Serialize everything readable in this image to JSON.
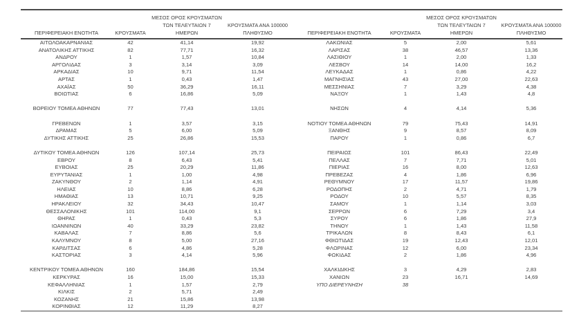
{
  "colors": {
    "text": "#3f3f3f",
    "border": "#4a4a4a",
    "background": "#ffffff"
  },
  "table": {
    "headers": {
      "region": "ΠΕΡΙΦΕΡΕΙΑΚΗ ΕΝΟΤΗΤΑ",
      "cases": "ΚΡΟΥΣΜΑΤΑ",
      "avg7": "ΜΕΣΟΣ ΟΡΟΣ ΚΡΟΥΣΜΑΤΩΝ\nΤΩΝ ΤΕΛΕΥΤΑΙΩΝ 7\nΗΜΕΡΩΝ",
      "per100k": "ΚΡΟΥΣΜΑΤΑ ΑΝΑ 100000\nΠΛΗΘΥΣΜΟ"
    },
    "left_rows": [
      {
        "name": "ΑΙΤΩΛΟΑΚΑΡΝΑΝΙΑΣ",
        "cases": "42",
        "avg7": "41,14",
        "per100k": "19,92"
      },
      {
        "name": "ΑΝΑΤΟΛΙΚΗΣ ΑΤΤΙΚΗΣ",
        "cases": "82",
        "avg7": "77,71",
        "per100k": "16,32"
      },
      {
        "name": "ΑΝΔΡΟΥ",
        "cases": "1",
        "avg7": "1,57",
        "per100k": "10,84"
      },
      {
        "name": "ΑΡΓΟΛΙΔΑΣ",
        "cases": "3",
        "avg7": "3,14",
        "per100k": "3,09"
      },
      {
        "name": "ΑΡΚΑΔΙΑΣ",
        "cases": "10",
        "avg7": "9,71",
        "per100k": "11,54"
      },
      {
        "name": "ΑΡΤΑΣ",
        "cases": "1",
        "avg7": "0,43",
        "per100k": "1,47"
      },
      {
        "name": "ΑΧΑΪΑΣ",
        "cases": "50",
        "avg7": "36,29",
        "per100k": "16,11"
      },
      {
        "name": "ΒΟΙΩΤΙΑΣ",
        "cases": "6",
        "avg7": "16,86",
        "per100k": "5,09"
      },
      {
        "name": "",
        "cases": "",
        "avg7": "",
        "per100k": ""
      },
      {
        "name": "ΒΟΡΕΙΟΥ ΤΟΜΕΑ ΑΘΗΝΩΝ",
        "cases": "77",
        "avg7": "77,43",
        "per100k": "13,01"
      },
      {
        "name": "",
        "cases": "",
        "avg7": "",
        "per100k": ""
      },
      {
        "name": "ΓΡΕΒΕΝΩΝ",
        "cases": "1",
        "avg7": "3,57",
        "per100k": "3,15"
      },
      {
        "name": "ΔΡΑΜΑΣ",
        "cases": "5",
        "avg7": "6,00",
        "per100k": "5,09"
      },
      {
        "name": "ΔΥΤΙΚΗΣ ΑΤΤΙΚΗΣ",
        "cases": "25",
        "avg7": "26,86",
        "per100k": "15,53"
      },
      {
        "name": "",
        "cases": "",
        "avg7": "",
        "per100k": ""
      },
      {
        "name": "ΔΥΤΙΚΟΥ ΤΟΜΕΑ ΑΘΗΝΩΝ",
        "cases": "126",
        "avg7": "107,14",
        "per100k": "25,73"
      },
      {
        "name": "ΕΒΡΟΥ",
        "cases": "8",
        "avg7": "6,43",
        "per100k": "5,41"
      },
      {
        "name": "ΕΥΒΟΙΑΣ",
        "cases": "25",
        "avg7": "20,29",
        "per100k": "11,86"
      },
      {
        "name": "ΕΥΡΥΤΑΝΙΑΣ",
        "cases": "1",
        "avg7": "1,00",
        "per100k": "4,98"
      },
      {
        "name": "ΖΑΚΥΝΘΟΥ",
        "cases": "2",
        "avg7": "1,14",
        "per100k": "4,91"
      },
      {
        "name": "ΗΛΕΙΑΣ",
        "cases": "10",
        "avg7": "8,86",
        "per100k": "6,28"
      },
      {
        "name": "ΗΜΑΘΙΑΣ",
        "cases": "13",
        "avg7": "10,71",
        "per100k": "9,25"
      },
      {
        "name": "ΗΡΑΚΛΕΙΟΥ",
        "cases": "32",
        "avg7": "34,43",
        "per100k": "10,47"
      },
      {
        "name": "ΘΕΣΣΑΛΟΝΙΚΗΣ",
        "cases": "101",
        "avg7": "114,00",
        "per100k": "9,1"
      },
      {
        "name": "ΘΗΡΑΣ",
        "cases": "1",
        "avg7": "0,43",
        "per100k": "5,3"
      },
      {
        "name": "ΙΩΑΝΝΙΝΩΝ",
        "cases": "40",
        "avg7": "33,29",
        "per100k": "23,82"
      },
      {
        "name": "ΚΑΒΑΛΑΣ",
        "cases": "7",
        "avg7": "8,86",
        "per100k": "5,6"
      },
      {
        "name": "ΚΑΛΥΜΝΟΥ",
        "cases": "8",
        "avg7": "5,00",
        "per100k": "27,16"
      },
      {
        "name": "ΚΑΡΔΙΤΣΑΣ",
        "cases": "6",
        "avg7": "4,86",
        "per100k": "5,28"
      },
      {
        "name": "ΚΑΣΤΟΡΙΑΣ",
        "cases": "3",
        "avg7": "4,14",
        "per100k": "5,96"
      },
      {
        "name": "",
        "cases": "",
        "avg7": "",
        "per100k": ""
      },
      {
        "name": "ΚΕΝΤΡΙΚΟΥ ΤΟΜΕΑ ΑΘΗΝΩΝ",
        "cases": "160",
        "avg7": "184,86",
        "per100k": "15,54"
      },
      {
        "name": "ΚΕΡΚΥΡΑΣ",
        "cases": "16",
        "avg7": "15,00",
        "per100k": "15,33"
      },
      {
        "name": "ΚΕΦΑΛΛΗΝΙΑΣ",
        "cases": "1",
        "avg7": "1,57",
        "per100k": "2,79"
      },
      {
        "name": "ΚΙΛΚΙΣ",
        "cases": "2",
        "avg7": "5,71",
        "per100k": "2,49"
      },
      {
        "name": "ΚΟΖΑΝΗΣ",
        "cases": "21",
        "avg7": "15,86",
        "per100k": "13,98"
      },
      {
        "name": "ΚΟΡΙΝΘΙΑΣ",
        "cases": "12",
        "avg7": "11,29",
        "per100k": "8,27"
      }
    ],
    "right_rows": [
      {
        "name": "ΛΑΚΩΝΙΑΣ",
        "cases": "5",
        "avg7": "2,00",
        "per100k": "5,61"
      },
      {
        "name": "ΛΑΡΙΣΑΣ",
        "cases": "38",
        "avg7": "46,57",
        "per100k": "13,36"
      },
      {
        "name": "ΛΑΣΙΘΙΟΥ",
        "cases": "1",
        "avg7": "2,00",
        "per100k": "1,33"
      },
      {
        "name": "ΛΕΣΒΟΥ",
        "cases": "14",
        "avg7": "14,00",
        "per100k": "16,2"
      },
      {
        "name": "ΛΕΥΚΑΔΑΣ",
        "cases": "1",
        "avg7": "0,86",
        "per100k": "4,22"
      },
      {
        "name": "ΜΑΓΝΗΣΙΑΣ",
        "cases": "43",
        "avg7": "27,00",
        "per100k": "22,63"
      },
      {
        "name": "ΜΕΣΣΗΝΙΑΣ",
        "cases": "7",
        "avg7": "3,29",
        "per100k": "4,38"
      },
      {
        "name": "ΝΑΞΟΥ",
        "cases": "1",
        "avg7": "1,43",
        "per100k": "4,8"
      },
      {
        "name": "",
        "cases": "",
        "avg7": "",
        "per100k": ""
      },
      {
        "name": "ΝΗΣΩΝ",
        "cases": "4",
        "avg7": "4,14",
        "per100k": "5,36"
      },
      {
        "name": "",
        "cases": "",
        "avg7": "",
        "per100k": ""
      },
      {
        "name": "ΝΟΤΙΟΥ ΤΟΜΕΑ ΑΘΗΝΩΝ",
        "cases": "79",
        "avg7": "75,43",
        "per100k": "14,91"
      },
      {
        "name": "ΞΑΝΘΗΣ",
        "cases": "9",
        "avg7": "8,57",
        "per100k": "8,09"
      },
      {
        "name": "ΠΑΡΟΥ",
        "cases": "1",
        "avg7": "0,86",
        "per100k": "6,7"
      },
      {
        "name": "",
        "cases": "",
        "avg7": "",
        "per100k": ""
      },
      {
        "name": "ΠΕΙΡΑΙΩΣ",
        "cases": "101",
        "avg7": "86,43",
        "per100k": "22,49"
      },
      {
        "name": "ΠΕΛΛΑΣ",
        "cases": "7",
        "avg7": "7,71",
        "per100k": "5,01"
      },
      {
        "name": "ΠΙΕΡΙΑΣ",
        "cases": "16",
        "avg7": "8,00",
        "per100k": "12,63"
      },
      {
        "name": "ΠΡΕΒΕΖΑΣ",
        "cases": "4",
        "avg7": "1,86",
        "per100k": "6,96"
      },
      {
        "name": "ΡΕΘΥΜΝΟΥ",
        "cases": "17",
        "avg7": "11,57",
        "per100k": "19,86"
      },
      {
        "name": "ΡΟΔΟΠΗΣ",
        "cases": "2",
        "avg7": "4,71",
        "per100k": "1,79"
      },
      {
        "name": "ΡΟΔΟΥ",
        "cases": "10",
        "avg7": "5,57",
        "per100k": "8,35"
      },
      {
        "name": "ΣΑΜΟΥ",
        "cases": "1",
        "avg7": "1,14",
        "per100k": "3,03"
      },
      {
        "name": "ΣΕΡΡΩΝ",
        "cases": "6",
        "avg7": "7,29",
        "per100k": "3,4"
      },
      {
        "name": "ΣΥΡΟΥ",
        "cases": "6",
        "avg7": "1,86",
        "per100k": "27,9"
      },
      {
        "name": "ΤΗΝΟΥ",
        "cases": "1",
        "avg7": "1,43",
        "per100k": "11,58"
      },
      {
        "name": "ΤΡΙΚΑΛΩΝ",
        "cases": "8",
        "avg7": "8,43",
        "per100k": "6,1"
      },
      {
        "name": "ΦΘΙΩΤΙΔΑΣ",
        "cases": "19",
        "avg7": "12,43",
        "per100k": "12,01"
      },
      {
        "name": "ΦΛΩΡΙΝΑΣ",
        "cases": "12",
        "avg7": "6,00",
        "per100k": "23,34"
      },
      {
        "name": "ΦΩΚΙΔΑΣ",
        "cases": "2",
        "avg7": "1,86",
        "per100k": "4,96"
      },
      {
        "name": "",
        "cases": "",
        "avg7": "",
        "per100k": ""
      },
      {
        "name": "ΧΑΛΚΙΔΙΚΗΣ",
        "cases": "3",
        "avg7": "4,29",
        "per100k": "2,83"
      },
      {
        "name": "ΧΑΝΙΩΝ",
        "cases": "23",
        "avg7": "16,71",
        "per100k": "14,69"
      },
      {
        "name": "ΥΠΟ ΔΙΕΡΕΥΝΗΣΗ",
        "cases": "38",
        "avg7": "",
        "per100k": "",
        "italic": true
      },
      {
        "name": "",
        "cases": "",
        "avg7": "",
        "per100k": ""
      },
      {
        "name": "",
        "cases": "",
        "avg7": "",
        "per100k": ""
      },
      {
        "name": "",
        "cases": "",
        "avg7": "",
        "per100k": ""
      }
    ]
  }
}
